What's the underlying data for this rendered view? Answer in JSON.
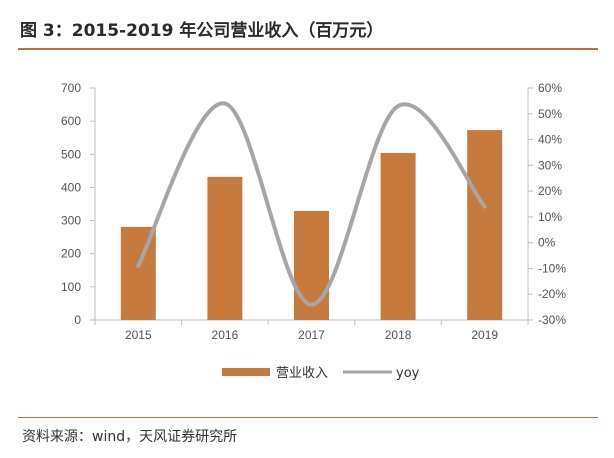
{
  "figure": {
    "title": "图 3：2015-2019 年公司营业收入（百万元）",
    "source": "资料来源：wind，天风证券研究所"
  },
  "colors": {
    "bar": "#c77a3e",
    "line": "#a6a6a6",
    "axis": "#bfbfbf",
    "accent_rule": "#c0703a"
  },
  "chart_data": {
    "type": "bar",
    "categories": [
      "2015",
      "2016",
      "2017",
      "2018",
      "2019"
    ],
    "series": [
      {
        "name": "营业收入",
        "type": "bar",
        "axis": "left",
        "values": [
          281,
          432,
          329,
          504,
          573
        ]
      },
      {
        "name": "yoy",
        "type": "line",
        "axis": "right",
        "values": [
          -0.09,
          0.54,
          -0.24,
          0.53,
          0.14
        ]
      }
    ],
    "y_left": {
      "min": 0,
      "max": 700,
      "ticks": [
        "0",
        "100",
        "200",
        "300",
        "400",
        "500",
        "600",
        "700"
      ]
    },
    "y_right": {
      "min": -0.3,
      "max": 0.6,
      "ticks": [
        "-30%",
        "-20%",
        "-10%",
        "0%",
        "10%",
        "20%",
        "30%",
        "40%",
        "50%",
        "60%"
      ]
    },
    "grid": false,
    "legend_position": "bottom"
  }
}
